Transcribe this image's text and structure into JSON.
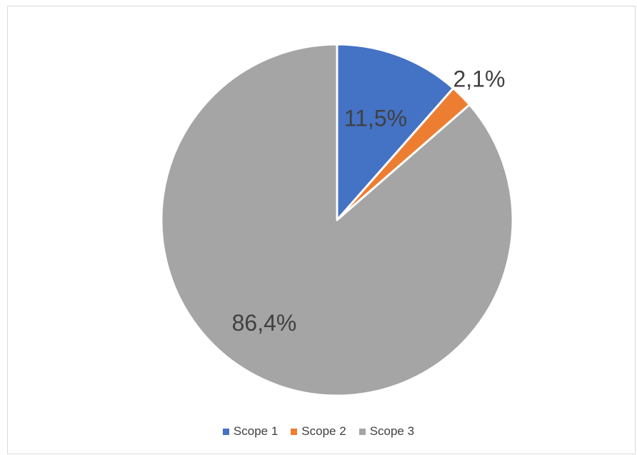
{
  "chart_data": {
    "type": "pie",
    "categories": [
      "Scope 1",
      "Scope 2",
      "Scope 3"
    ],
    "values": [
      11.5,
      2.1,
      86.4
    ],
    "data_labels": [
      "11,5%",
      "2,1%",
      "86,4%"
    ],
    "colors": [
      "#4472C4",
      "#ED7D31",
      "#A5A5A5"
    ],
    "start_angle_deg": 0,
    "direction": "clockwise",
    "legend_position": "bottom",
    "title": ""
  },
  "legend": {
    "items": [
      {
        "label": "Scope 1",
        "color": "#4472C4"
      },
      {
        "label": "Scope 2",
        "color": "#ED7D31"
      },
      {
        "label": "Scope 3",
        "color": "#A5A5A5"
      }
    ]
  }
}
